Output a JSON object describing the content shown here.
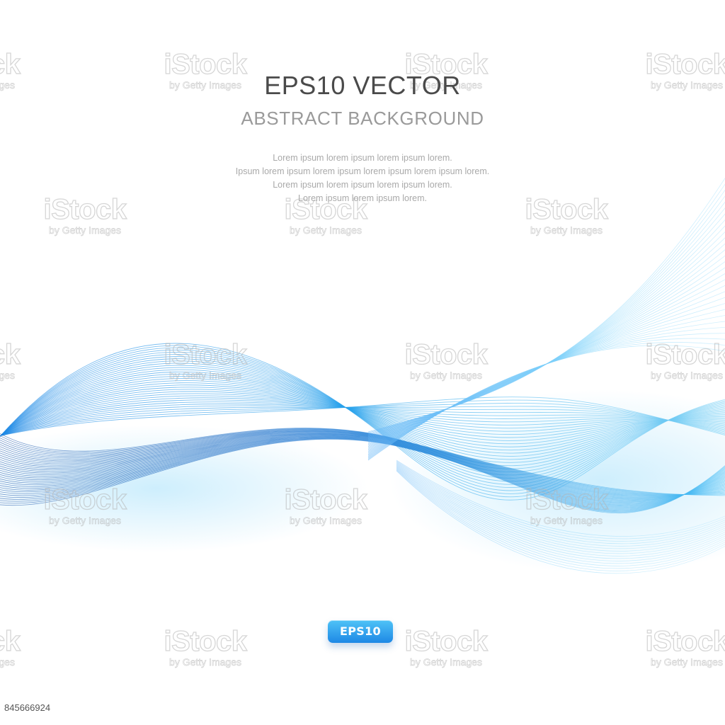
{
  "heading": {
    "main": "EPS10",
    "rest": " VECTOR",
    "subtitle": "ABSTRACT BACKGROUND"
  },
  "lorem_lines": [
    "Lorem ipsum lorem ipsum lorem ipsum lorem.",
    "Ipsum lorem ipsum lorem ipsum lorem ipsum lorem ipsum lorem.",
    "Lorem ipsum lorem ipsum lorem ipsum lorem.",
    "Lorem ipsum lorem ipsum lorem."
  ],
  "badge": "EPS10",
  "watermark": {
    "brand": "iStock",
    "byline": "by Getty Images"
  },
  "image_id": "845666924",
  "colors": {
    "wave_light": "#7fd3f5",
    "wave_mid": "#39a9ec",
    "wave_dark": "#1565c0",
    "badge_top": "#4fc3f7",
    "badge_bottom": "#1e88e5"
  }
}
